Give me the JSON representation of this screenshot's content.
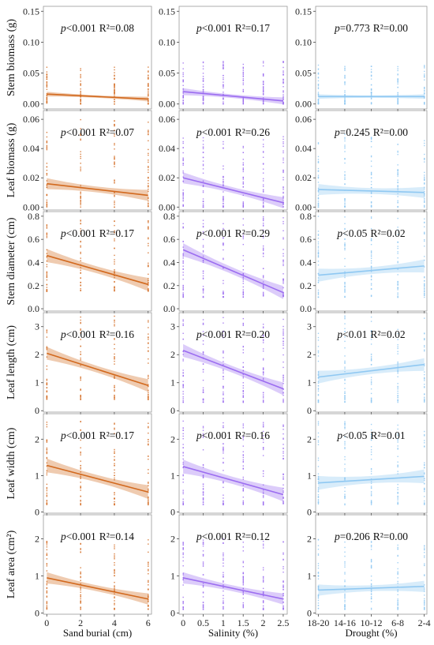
{
  "colors": {
    "sand": "#D2691E",
    "salinity": "#9B6CF0",
    "drought": "#8FC8F2",
    "axis": "#444444",
    "frame": "#9a9a9a"
  },
  "row_labels": [
    "Stem biomass (g)",
    "Leaf biomass (g)",
    "Stem diameter (cm)",
    "Leaf length (cm)",
    "Leaf width (cm)",
    "Leaf area (cm²)"
  ],
  "column_xlabels": [
    "Sand burial (cm)",
    "Salinity (%)",
    "Drought (%)"
  ],
  "chart_data": {
    "type": "scatter",
    "layout": "6x3 grid of scatter plots with linear fits and confidence bands",
    "columns": [
      {
        "key": "sand",
        "xlabel": "Sand burial (cm)",
        "x_categories": [
          "0",
          "2",
          "4",
          "6"
        ],
        "x_values": [
          0,
          2,
          4,
          6
        ],
        "xlim": [
          -0.2,
          6.2
        ]
      },
      {
        "key": "salinity",
        "xlabel": "Salinity (%)",
        "x_categories": [
          "0",
          "0.5",
          "1",
          "1.5",
          "2",
          "2.5"
        ],
        "x_values": [
          0,
          0.5,
          1,
          1.5,
          2,
          2.5
        ],
        "xlim": [
          -0.1,
          2.6
        ]
      },
      {
        "key": "drought",
        "xlabel": "Drought (%)",
        "x_categories": [
          "18-20",
          "14-16",
          "10-12",
          "6-8",
          "2-4"
        ],
        "x_values": [
          0,
          1,
          2,
          3,
          4
        ],
        "xlim": [
          -0.1,
          4.1
        ]
      }
    ],
    "rows": [
      {
        "ylabel": "Stem biomass (g)",
        "yticks": [
          0.0,
          0.05,
          0.1,
          0.15
        ],
        "ytick_labels": [
          "0.00",
          "0.05",
          "0.10",
          "0.15"
        ],
        "ylim": [
          -0.008,
          0.158
        ],
        "panels": [
          {
            "p": "<0.001",
            "r2": "0.08",
            "fit": [
              0.016,
              0.008
            ],
            "band": 0.002,
            "spread": [
              0.0,
              0.06
            ]
          },
          {
            "p": "<0.001",
            "r2": "0.17",
            "fit": [
              0.02,
              0.005
            ],
            "band": 0.003,
            "spread": [
              0.0,
              0.07
            ]
          },
          {
            "p": "=0.773",
            "r2": "0.00",
            "fit": [
              0.012,
              0.012
            ],
            "band": 0.002,
            "spread": [
              0.0,
              0.065
            ]
          }
        ]
      },
      {
        "ylabel": "Leaf biomass (g)",
        "yticks": [
          0.0,
          0.02,
          0.04,
          0.06
        ],
        "ytick_labels": [
          "0.00",
          "0.02",
          "0.04",
          "0.06"
        ],
        "ylim": [
          -0.002,
          0.066
        ],
        "panels": [
          {
            "p": "<0.001",
            "r2": "0.07",
            "fit": [
              0.016,
              0.008
            ],
            "band": 0.002,
            "spread": [
              0.0,
              0.06
            ]
          },
          {
            "p": "<0.001",
            "r2": "0.26",
            "fit": [
              0.02,
              0.003
            ],
            "band": 0.002,
            "spread": [
              0.0,
              0.05
            ]
          },
          {
            "p": "=0.245",
            "r2": "0.00",
            "fit": [
              0.012,
              0.01
            ],
            "band": 0.002,
            "spread": [
              0.0,
              0.05
            ]
          }
        ]
      },
      {
        "ylabel": "Stem diameter (cm)",
        "yticks": [
          0.0,
          0.2,
          0.4,
          0.6,
          0.8
        ],
        "ytick_labels": [
          "0.0",
          "0.2",
          "0.4",
          "0.6",
          "0.8"
        ],
        "ylim": [
          -0.02,
          0.84
        ],
        "panels": [
          {
            "p": "<0.001",
            "r2": "0.17",
            "fit": [
              0.46,
              0.21
            ],
            "band": 0.03,
            "spread": [
              0.15,
              0.8
            ]
          },
          {
            "p": "<0.001",
            "r2": "0.29",
            "fit": [
              0.51,
              0.14
            ],
            "band": 0.03,
            "spread": [
              0.1,
              0.8
            ]
          },
          {
            "p": "<0.05",
            "r2": "0.02",
            "fit": [
              0.29,
              0.37
            ],
            "band": 0.03,
            "spread": [
              0.1,
              0.8
            ]
          }
        ]
      },
      {
        "ylabel": "Leaf length (cm)",
        "yticks": [
          0,
          1,
          2,
          3
        ],
        "ytick_labels": [
          "0",
          "1",
          "2",
          "3"
        ],
        "ylim": [
          -0.05,
          3.5
        ],
        "panels": [
          {
            "p": "<0.001",
            "r2": "0.16",
            "fit": [
              2.05,
              0.9
            ],
            "band": 0.12,
            "spread": [
              0.4,
              3.4
            ]
          },
          {
            "p": "<0.001",
            "r2": "0.20",
            "fit": [
              2.15,
              0.78
            ],
            "band": 0.12,
            "spread": [
              0.3,
              3.4
            ]
          },
          {
            "p": "<0.01",
            "r2": "0.02",
            "fit": [
              1.2,
              1.65
            ],
            "band": 0.12,
            "spread": [
              0.3,
              3.4
            ]
          }
        ]
      },
      {
        "ylabel": "Leaf width (cm)",
        "yticks": [
          0,
          1,
          2
        ],
        "ytick_labels": [
          "0",
          "1",
          "2"
        ],
        "ylim": [
          -0.03,
          2.7
        ],
        "panels": [
          {
            "p": "<0.001",
            "r2": "0.17",
            "fit": [
              1.28,
              0.55
            ],
            "band": 0.1,
            "spread": [
              0.2,
              2.5
            ]
          },
          {
            "p": "<0.001",
            "r2": "0.16",
            "fit": [
              1.25,
              0.48
            ],
            "band": 0.1,
            "spread": [
              0.2,
              2.5
            ]
          },
          {
            "p": "<0.05",
            "r2": "0.01",
            "fit": [
              0.8,
              0.98
            ],
            "band": 0.1,
            "spread": [
              0.2,
              2.5
            ]
          }
        ]
      },
      {
        "ylabel": "Leaf area (cm²)",
        "yticks": [
          0,
          1,
          2
        ],
        "ytick_labels": [
          "0",
          "1",
          "2"
        ],
        "ylim": [
          -0.03,
          2.65
        ],
        "panels": [
          {
            "p": "<0.001",
            "r2": "0.14",
            "fit": [
              0.95,
              0.38
            ],
            "band": 0.08,
            "spread": [
              0.1,
              2.0
            ]
          },
          {
            "p": "<0.001",
            "r2": "0.12",
            "fit": [
              0.95,
              0.38
            ],
            "band": 0.08,
            "spread": [
              0.1,
              2.0
            ]
          },
          {
            "p": "=0.206",
            "r2": "0.00",
            "fit": [
              0.62,
              0.72
            ],
            "band": 0.08,
            "spread": [
              0.1,
              2.0
            ]
          }
        ]
      }
    ]
  }
}
